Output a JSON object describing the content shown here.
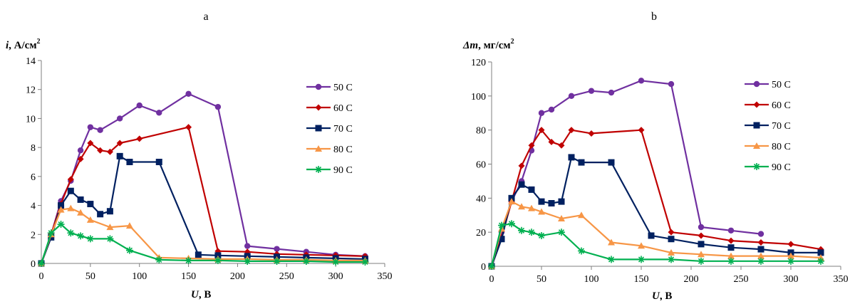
{
  "chart_data": [
    {
      "type": "line",
      "panel_label": "a",
      "ylabel_var": "i",
      "ylabel_unit": ", А/см",
      "ylabel_sup": "2",
      "xlabel_var": "U",
      "xlabel_unit": ", В",
      "xlim": [
        0,
        350
      ],
      "ylim": [
        0,
        14
      ],
      "x_ticks": [
        0,
        50,
        100,
        150,
        200,
        250,
        300,
        350
      ],
      "y_ticks": [
        0,
        2,
        4,
        6,
        8,
        10,
        12,
        14
      ],
      "grid": false,
      "legend_position": "right",
      "series": [
        {
          "name": "50  C",
          "color": "#7030a0",
          "marker": "circle",
          "x": [
            0,
            10,
            20,
            30,
            40,
            50,
            60,
            80,
            100,
            120,
            150,
            180,
            210,
            240,
            270,
            300,
            330
          ],
          "y": [
            0,
            2.0,
            4.3,
            5.7,
            7.8,
            9.4,
            9.2,
            10.0,
            10.9,
            10.4,
            11.7,
            10.8,
            1.2,
            1.0,
            0.8,
            0.6,
            0.5
          ]
        },
        {
          "name": "60  C",
          "color": "#c00000",
          "marker": "diamond",
          "x": [
            0,
            10,
            20,
            30,
            40,
            50,
            60,
            70,
            80,
            100,
            150,
            180,
            210,
            240,
            270,
            300,
            330
          ],
          "y": [
            0,
            2.0,
            4.1,
            5.8,
            7.2,
            8.3,
            7.8,
            7.7,
            8.3,
            8.6,
            9.4,
            0.85,
            0.8,
            0.65,
            0.6,
            0.55,
            0.5
          ]
        },
        {
          "name": "70  C",
          "color": "#002060",
          "marker": "square",
          "x": [
            0,
            10,
            20,
            30,
            40,
            50,
            60,
            70,
            80,
            90,
            120,
            160,
            180,
            210,
            240,
            270,
            300,
            330
          ],
          "y": [
            0,
            1.8,
            4.0,
            5.0,
            4.4,
            4.1,
            3.4,
            3.6,
            7.4,
            7.0,
            7.0,
            0.6,
            0.55,
            0.5,
            0.45,
            0.4,
            0.35,
            0.3
          ]
        },
        {
          "name": "80  C",
          "color": "#f79646",
          "marker": "triangle",
          "x": [
            0,
            10,
            20,
            30,
            40,
            50,
            70,
            90,
            120,
            150,
            180,
            210,
            240,
            270,
            300,
            330
          ],
          "y": [
            0,
            2.0,
            3.7,
            3.8,
            3.5,
            3.0,
            2.5,
            2.6,
            0.4,
            0.35,
            0.3,
            0.3,
            0.25,
            0.25,
            0.2,
            0.2
          ]
        },
        {
          "name": "90  C",
          "color": "#00b050",
          "marker": "asterisk",
          "x": [
            0,
            10,
            20,
            30,
            40,
            50,
            70,
            90,
            120,
            150,
            180,
            210,
            240,
            270,
            300,
            330
          ],
          "y": [
            0,
            2.1,
            2.7,
            2.1,
            1.9,
            1.7,
            1.7,
            0.9,
            0.25,
            0.2,
            0.2,
            0.15,
            0.15,
            0.15,
            0.1,
            0.1
          ]
        }
      ]
    },
    {
      "type": "line",
      "panel_label": "b",
      "ylabel_var": "Δm",
      "ylabel_unit": ", мг/см",
      "ylabel_sup": "2",
      "xlabel_var": "U",
      "xlabel_unit": ", В",
      "xlim": [
        0,
        350
      ],
      "ylim": [
        0,
        120
      ],
      "x_ticks": [
        0,
        50,
        100,
        150,
        200,
        250,
        300,
        350
      ],
      "y_ticks": [
        0,
        20,
        40,
        60,
        80,
        100,
        120
      ],
      "grid": false,
      "legend_position": "right",
      "series": [
        {
          "name": "50  C",
          "color": "#7030a0",
          "marker": "circle",
          "x": [
            0,
            10,
            20,
            30,
            40,
            50,
            60,
            80,
            100,
            120,
            150,
            180,
            210,
            240,
            270
          ],
          "y": [
            0,
            20,
            38,
            50,
            68,
            90,
            92,
            100,
            103,
            102,
            109,
            107,
            23,
            21,
            19
          ]
        },
        {
          "name": "60  C",
          "color": "#c00000",
          "marker": "diamond",
          "x": [
            0,
            10,
            20,
            30,
            40,
            50,
            60,
            70,
            80,
            100,
            150,
            180,
            210,
            240,
            270,
            300,
            330
          ],
          "y": [
            0,
            17,
            38,
            59,
            71,
            80,
            73,
            71,
            80,
            78,
            80,
            20,
            18,
            15,
            14,
            13,
            10
          ]
        },
        {
          "name": "70  C",
          "color": "#002060",
          "marker": "square",
          "x": [
            0,
            10,
            20,
            30,
            40,
            50,
            60,
            70,
            80,
            90,
            120,
            160,
            180,
            210,
            240,
            270,
            300,
            330
          ],
          "y": [
            0,
            16,
            40,
            48,
            45,
            38,
            37,
            38,
            64,
            61,
            61,
            18,
            16,
            13,
            11,
            10,
            8,
            8
          ]
        },
        {
          "name": "80  C",
          "color": "#f79646",
          "marker": "triangle",
          "x": [
            0,
            10,
            20,
            30,
            40,
            50,
            70,
            90,
            120,
            150,
            180,
            210,
            240,
            270,
            300,
            330
          ],
          "y": [
            0,
            22,
            38,
            35,
            34,
            32,
            28,
            30,
            14,
            12,
            8,
            7,
            6,
            6,
            6,
            5
          ]
        },
        {
          "name": "90  C",
          "color": "#00b050",
          "marker": "asterisk",
          "x": [
            0,
            10,
            20,
            30,
            40,
            50,
            70,
            90,
            120,
            150,
            180,
            210,
            240,
            270,
            300,
            330
          ],
          "y": [
            0,
            24,
            25,
            21,
            20,
            18,
            20,
            9,
            4,
            4,
            4,
            3,
            3,
            3,
            3,
            3
          ]
        }
      ]
    }
  ]
}
